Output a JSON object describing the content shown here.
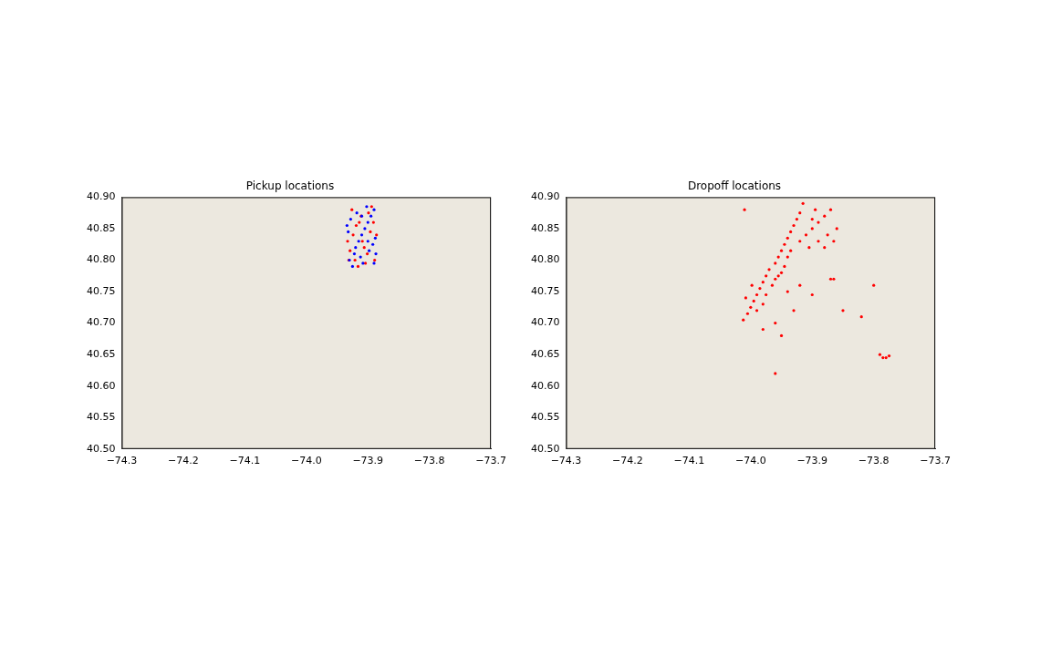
{
  "chart_data": [
    {
      "type": "scatter",
      "title": "Pickup locations",
      "xlim": [
        -74.3,
        -73.7
      ],
      "xticks": [
        {
          "value": -74.3,
          "label": "−74.3"
        },
        {
          "value": -74.2,
          "label": "−74.2"
        },
        {
          "value": -74.1,
          "label": "−74.1"
        },
        {
          "value": -74.0,
          "label": "−74.0"
        },
        {
          "value": -73.9,
          "label": "−73.9"
        },
        {
          "value": -73.8,
          "label": "−73.8"
        },
        {
          "value": -73.7,
          "label": "−73.7"
        }
      ],
      "ylim": [
        40.5,
        40.9
      ],
      "yticks": [
        {
          "value": 40.5,
          "label": "40.50"
        },
        40.55,
        {
          "value": 40.6,
          "label": "40.60"
        },
        40.65,
        {
          "value": 40.7,
          "label": "40.70"
        },
        40.75,
        {
          "value": 40.8,
          "label": "40.80"
        },
        40.85,
        {
          "value": 40.9,
          "label": "40.90"
        }
      ],
      "grid": false,
      "series": [
        {
          "color": "#0000ff",
          "x": [
            -73.93,
            -73.92,
            -73.91,
            -73.9,
            -73.89,
            -73.925,
            -73.915,
            -73.905,
            -73.895,
            -73.887,
            -73.932,
            -73.918,
            -73.908,
            -73.898,
            -73.888,
            -73.928,
            -73.912,
            -73.902,
            -73.892,
            -73.934,
            -73.922,
            -73.91,
            -73.9,
            -73.89
          ],
          "values": [
            40.8,
            40.82,
            40.84,
            40.86,
            40.88,
            40.79,
            40.83,
            40.85,
            40.87,
            40.81,
            40.845,
            40.875,
            40.795,
            40.815,
            40.835,
            40.865,
            40.805,
            40.885,
            40.825,
            40.855,
            40.81,
            40.87,
            40.83,
            40.795
          ]
        },
        {
          "color": "#ff0000",
          "x": [
            -73.933,
            -73.921,
            -73.911,
            -73.901,
            -73.891,
            -73.926,
            -73.916,
            -73.906,
            -73.896,
            -73.886,
            -73.931,
            -73.919,
            -73.909,
            -73.899,
            -73.889,
            -73.929,
            -73.914,
            -73.904,
            -73.894,
            -73.924
          ],
          "values": [
            40.83,
            40.8,
            40.87,
            40.81,
            40.86,
            40.88,
            40.79,
            40.82,
            40.845,
            40.84,
            40.8,
            40.855,
            40.83,
            40.875,
            40.8,
            40.815,
            40.86,
            40.795,
            40.885,
            40.84
          ]
        }
      ]
    },
    {
      "type": "scatter",
      "title": "Dropoff locations",
      "xlim": [
        -74.3,
        -73.7
      ],
      "xticks": [
        {
          "value": -74.3,
          "label": "−74.3"
        },
        {
          "value": -74.2,
          "label": "−74.2"
        },
        {
          "value": -74.1,
          "label": "−74.1"
        },
        {
          "value": -74.0,
          "label": "−74.0"
        },
        {
          "value": -73.9,
          "label": "−73.9"
        },
        {
          "value": -73.8,
          "label": "−73.8"
        },
        {
          "value": -73.7,
          "label": "−73.7"
        }
      ],
      "ylim": [
        40.5,
        40.9
      ],
      "yticks": [
        {
          "value": 40.5,
          "label": "40.50"
        },
        40.55,
        {
          "value": 40.6,
          "label": "40.60"
        },
        40.65,
        {
          "value": 40.7,
          "label": "40.70"
        },
        40.75,
        {
          "value": 40.8,
          "label": "40.80"
        },
        40.85,
        {
          "value": 40.9,
          "label": "40.90"
        }
      ],
      "grid": false,
      "series": [
        {
          "color": "#ff0000",
          "x": [
            -74.012,
            -74.005,
            -74.0,
            -73.995,
            -73.99,
            -73.985,
            -73.98,
            -73.975,
            -73.97,
            -73.96,
            -73.955,
            -73.95,
            -73.945,
            -73.94,
            -73.935,
            -73.93,
            -73.925,
            -73.92,
            -73.98,
            -73.975,
            -73.965,
            -73.955,
            -73.945,
            -73.94,
            -73.935,
            -73.99,
            -73.96,
            -73.95,
            -74.008,
            -73.998,
            -73.91,
            -73.9,
            -73.89,
            -73.88,
            -73.87,
            -73.92,
            -73.905,
            -73.89,
            -73.875,
            -73.86,
            -73.895,
            -73.915,
            -73.88,
            -73.865,
            -73.9,
            -73.94,
            -73.92,
            -73.9,
            -73.87,
            -73.865,
            -73.96,
            -73.95,
            -73.93,
            -73.85,
            -73.82,
            -73.98,
            -73.78,
            -73.785,
            -73.775,
            -73.79,
            -74.01,
            -73.8,
            -73.96
          ],
          "values": [
            40.705,
            40.715,
            40.725,
            40.735,
            40.745,
            40.755,
            40.765,
            40.775,
            40.785,
            40.795,
            40.805,
            40.815,
            40.825,
            40.835,
            40.845,
            40.855,
            40.865,
            40.875,
            40.73,
            40.745,
            40.76,
            40.775,
            40.79,
            40.805,
            40.815,
            40.72,
            40.77,
            40.78,
            40.74,
            40.76,
            40.84,
            40.85,
            40.86,
            40.87,
            40.88,
            40.83,
            40.82,
            40.83,
            40.84,
            40.85,
            40.88,
            40.89,
            40.82,
            40.83,
            40.865,
            40.75,
            40.76,
            40.745,
            40.77,
            40.77,
            40.7,
            40.68,
            40.72,
            40.72,
            40.71,
            40.69,
            40.645,
            40.645,
            40.648,
            40.65,
            40.88,
            40.76,
            40.62
          ]
        }
      ]
    }
  ]
}
